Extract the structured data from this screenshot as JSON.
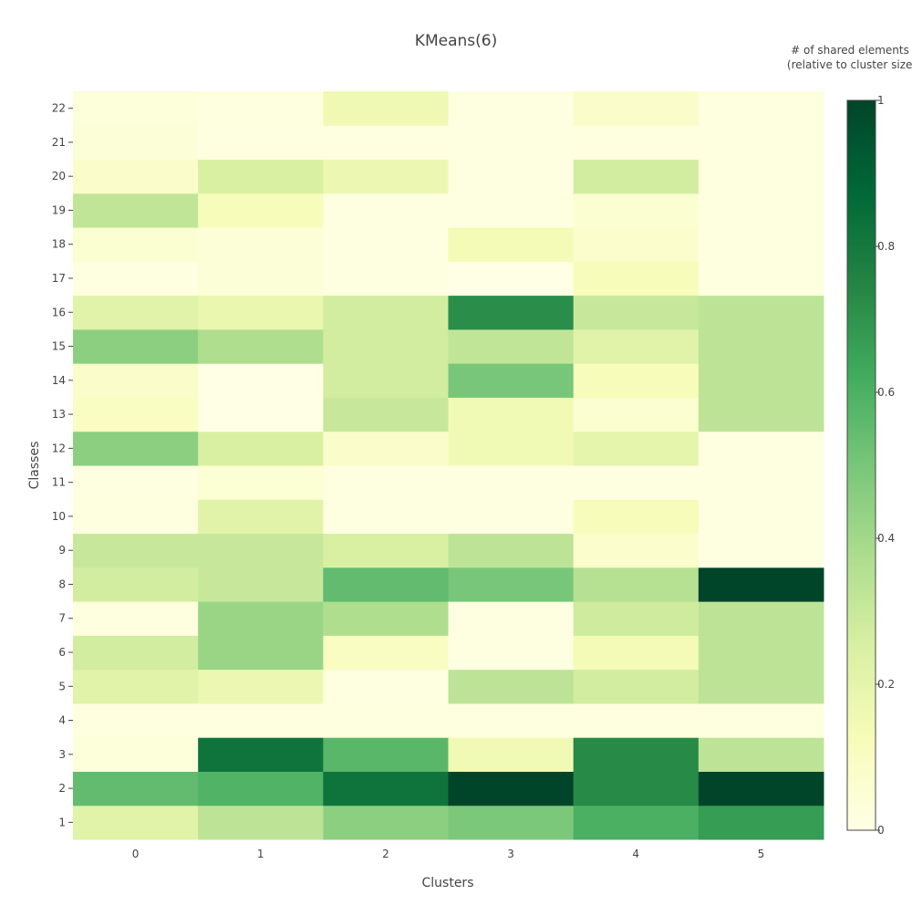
{
  "chart_data": {
    "type": "heatmap",
    "title": "KMeans(6)",
    "xlabel": "Clusters",
    "ylabel": "Classes",
    "x": [
      "0",
      "1",
      "2",
      "3",
      "4",
      "5"
    ],
    "y": [
      "1",
      "2",
      "3",
      "4",
      "5",
      "6",
      "7",
      "8",
      "9",
      "10",
      "11",
      "12",
      "13",
      "14",
      "15",
      "16",
      "17",
      "18",
      "19",
      "20",
      "21",
      "22"
    ],
    "z": [
      [
        0.22,
        0.33,
        0.45,
        0.49,
        0.6,
        0.67
      ],
      [
        0.55,
        0.59,
        0.82,
        1.0,
        0.73,
        1.0
      ],
      [
        0.03,
        0.82,
        0.57,
        0.15,
        0.73,
        0.33
      ],
      [
        0.02,
        0.02,
        0.02,
        0.02,
        0.02,
        0.02
      ],
      [
        0.22,
        0.17,
        0.01,
        0.33,
        0.27,
        0.33
      ],
      [
        0.27,
        0.42,
        0.1,
        0.01,
        0.14,
        0.33
      ],
      [
        0.02,
        0.42,
        0.37,
        0.01,
        0.28,
        0.33
      ],
      [
        0.27,
        0.3,
        0.55,
        0.5,
        0.35,
        1.0
      ],
      [
        0.3,
        0.3,
        0.25,
        0.33,
        0.07,
        0.01
      ],
      [
        0.02,
        0.22,
        0.01,
        0.01,
        0.12,
        0.01
      ],
      [
        0.01,
        0.05,
        0.01,
        0.01,
        0.01,
        0.01
      ],
      [
        0.45,
        0.25,
        0.08,
        0.15,
        0.2,
        0.01
      ],
      [
        0.1,
        0.0,
        0.3,
        0.15,
        0.06,
        0.33
      ],
      [
        0.08,
        0.0,
        0.27,
        0.5,
        0.12,
        0.33
      ],
      [
        0.45,
        0.37,
        0.27,
        0.32,
        0.22,
        0.33
      ],
      [
        0.22,
        0.18,
        0.27,
        0.72,
        0.3,
        0.33
      ],
      [
        0.01,
        0.04,
        0.01,
        0.0,
        0.12,
        0.02
      ],
      [
        0.06,
        0.04,
        0.01,
        0.14,
        0.07,
        0.02
      ],
      [
        0.32,
        0.12,
        0.01,
        0.01,
        0.06,
        0.02
      ],
      [
        0.08,
        0.25,
        0.17,
        0.01,
        0.27,
        0.02
      ],
      [
        0.04,
        0.01,
        0.01,
        0.01,
        0.02,
        0.02
      ],
      [
        0.03,
        0.02,
        0.16,
        0.01,
        0.08,
        0.02
      ]
    ],
    "zrange": [
      0,
      1
    ],
    "colorscale": [
      "#ffffe5",
      "#f7fcb9",
      "#d9f0a3",
      "#addd8e",
      "#78c679",
      "#41ab5d",
      "#238443",
      "#006837",
      "#004529"
    ],
    "colorbar": {
      "title_line1": "# of shared elements",
      "title_line2": "(relative to cluster size)",
      "ticks": [
        "0",
        "0.2",
        "0.4",
        "0.6",
        "0.8",
        "1"
      ]
    }
  }
}
